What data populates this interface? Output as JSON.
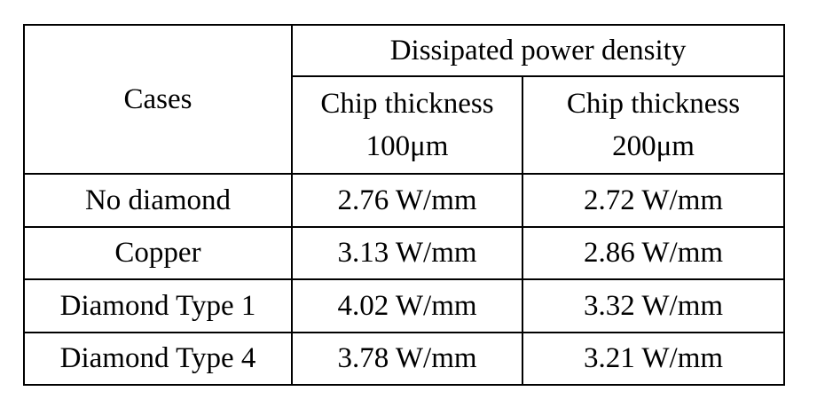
{
  "table": {
    "cases_header": "Cases",
    "group_header": "Dissipated power density",
    "columns": [
      {
        "line1": "Chip thickness",
        "line2": "100μm"
      },
      {
        "line1": "Chip thickness",
        "line2": "200μm"
      }
    ],
    "rows": [
      {
        "case": "No diamond",
        "values": [
          "2.76 W/mm",
          "2.72 W/mm"
        ]
      },
      {
        "case": "Copper",
        "values": [
          "3.13 W/mm",
          "2.86 W/mm"
        ]
      },
      {
        "case": "Diamond Type 1",
        "values": [
          "4.02 W/mm",
          "3.32 W/mm"
        ]
      },
      {
        "case": "Diamond Type 4",
        "values": [
          "3.78 W/mm",
          "3.21 W/mm"
        ]
      }
    ]
  }
}
